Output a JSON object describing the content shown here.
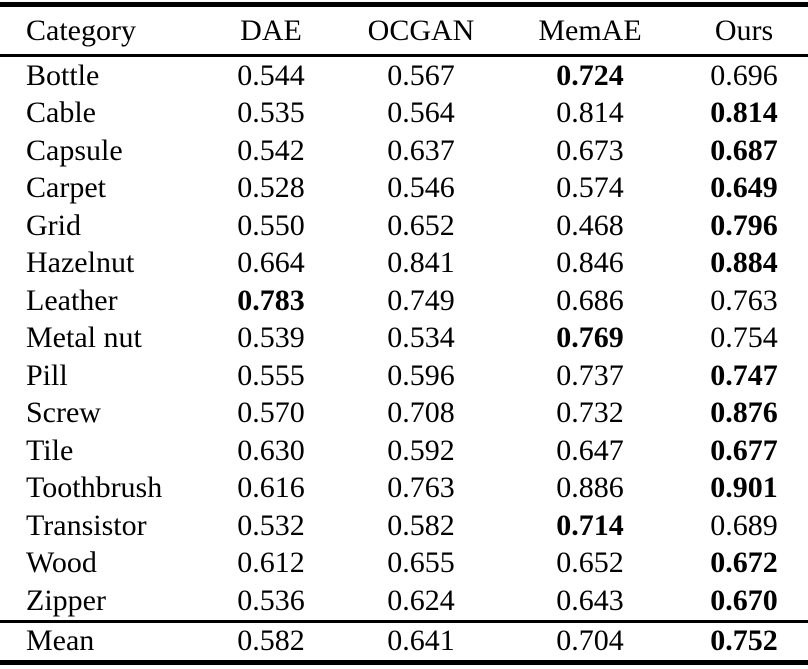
{
  "table": {
    "columns": [
      "Category",
      "DAE",
      "OCGAN",
      "MemAE",
      "Ours"
    ],
    "rows": [
      {
        "category": "Bottle",
        "values": [
          "0.544",
          "0.567",
          "0.724",
          "0.696"
        ],
        "bold_index": 2
      },
      {
        "category": "Cable",
        "values": [
          "0.535",
          "0.564",
          "0.814",
          "0.814"
        ],
        "bold_index": 3
      },
      {
        "category": "Capsule",
        "values": [
          "0.542",
          "0.637",
          "0.673",
          "0.687"
        ],
        "bold_index": 3
      },
      {
        "category": "Carpet",
        "values": [
          "0.528",
          "0.546",
          "0.574",
          "0.649"
        ],
        "bold_index": 3
      },
      {
        "category": "Grid",
        "values": [
          "0.550",
          "0.652",
          "0.468",
          "0.796"
        ],
        "bold_index": 3
      },
      {
        "category": "Hazelnut",
        "values": [
          "0.664",
          "0.841",
          "0.846",
          "0.884"
        ],
        "bold_index": 3
      },
      {
        "category": "Leather",
        "values": [
          "0.783",
          "0.749",
          "0.686",
          "0.763"
        ],
        "bold_index": 0
      },
      {
        "category": "Metal nut",
        "values": [
          "0.539",
          "0.534",
          "0.769",
          "0.754"
        ],
        "bold_index": 2
      },
      {
        "category": "Pill",
        "values": [
          "0.555",
          "0.596",
          "0.737",
          "0.747"
        ],
        "bold_index": 3
      },
      {
        "category": "Screw",
        "values": [
          "0.570",
          "0.708",
          "0.732",
          "0.876"
        ],
        "bold_index": 3
      },
      {
        "category": "Tile",
        "values": [
          "0.630",
          "0.592",
          "0.647",
          "0.677"
        ],
        "bold_index": 3
      },
      {
        "category": "Toothbrush",
        "values": [
          "0.616",
          "0.763",
          "0.886",
          "0.901"
        ],
        "bold_index": 3
      },
      {
        "category": "Transistor",
        "values": [
          "0.532",
          "0.582",
          "0.714",
          "0.689"
        ],
        "bold_index": 2
      },
      {
        "category": "Wood",
        "values": [
          "0.612",
          "0.655",
          "0.652",
          "0.672"
        ],
        "bold_index": 3
      },
      {
        "category": "Zipper",
        "values": [
          "0.536",
          "0.624",
          "0.643",
          "0.670"
        ],
        "bold_index": 3
      }
    ],
    "summary_row": {
      "category": "Mean",
      "values": [
        "0.582",
        "0.641",
        "0.704",
        "0.752"
      ],
      "bold_index": 3
    }
  },
  "colors": {
    "text": "#000000",
    "background": "#ffffff",
    "rule": "#000000"
  }
}
